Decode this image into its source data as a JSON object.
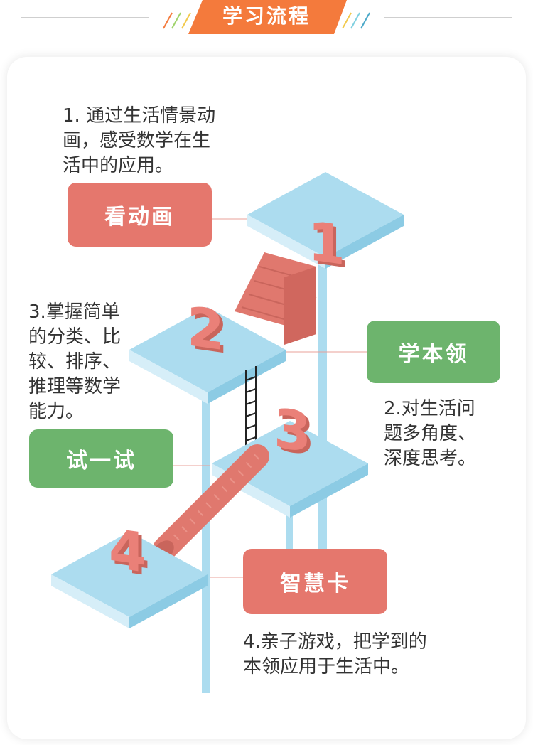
{
  "header": {
    "title": "学习流程"
  },
  "steps": [
    {
      "number": "1",
      "button": "看动画",
      "description": [
        "1. 通过生活情景动",
        "画，感受数学在生",
        "活中的应用。"
      ]
    },
    {
      "number": "2",
      "button": "学本领",
      "description": [
        "2.对生活问",
        "题多角度、",
        "深度思考。"
      ]
    },
    {
      "number": "3",
      "button": "试一试",
      "description": [
        "3.掌握简单",
        "的分类、比",
        "较、排序、",
        "推理等数学",
        "能力。"
      ]
    },
    {
      "number": "4",
      "button": "智慧卡",
      "description": [
        "4.亲子游戏，把学到的",
        "本领应用于生活中。"
      ]
    }
  ],
  "colors": {
    "accent_orange": "#f47a3c",
    "button_red": "#e5776d",
    "button_green": "#6db46d",
    "platform_blue": "#acdcef",
    "text": "#333333"
  }
}
